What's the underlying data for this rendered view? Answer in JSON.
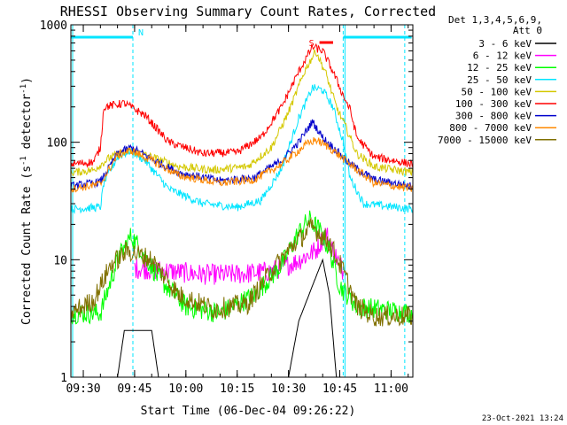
{
  "chart_data": {
    "type": "line",
    "title": "RHESSI Observing Summary Count Rates, Corrected",
    "xlabel": "Start Time (06-Dec-04 09:26:22)",
    "ylabel_main": "Corrected Count Rate (s",
    "ylabel_sup1": "-1",
    "ylabel_mid": " detector",
    "ylabel_sup2": "-1",
    "ylabel_end": ")",
    "ylog": true,
    "ylim": [
      1,
      1000
    ],
    "xlim": [
      "09:26:22",
      "11:06:22"
    ],
    "x_ticks": [
      "09:30",
      "09:45",
      "10:00",
      "10:15",
      "10:30",
      "10:45",
      "11:00"
    ],
    "y_ticks": [
      "1",
      "10",
      "100",
      "1000"
    ],
    "legend_header": [
      "Det 1,3,4,5,6,9,",
      "Att 0"
    ],
    "legend_position": "right",
    "footer": "23-Oct-2021 13:24",
    "flags": {
      "n_label": "N",
      "s_label": "S",
      "night_intervals": [
        [
          "09:26:22",
          "09:44:30"
        ],
        [
          "10:46:00",
          "11:06:00"
        ]
      ],
      "flare_interval": [
        "10:37:30",
        "10:41:30"
      ],
      "saa_lines": [
        "09:44:30",
        "10:46:00",
        "11:04:00"
      ]
    },
    "colors": {
      "n_flag": "#00e5ff",
      "s_flag": "#ff0000",
      "dashed_lines": "#00e5ff",
      "axes": "#000000"
    },
    "series": [
      {
        "name": "3 - 6 keV",
        "color": "#000000",
        "points": [
          [
            "09:26:22",
            1
          ],
          [
            "09:40:00",
            1
          ],
          [
            "09:42:00",
            2.5
          ],
          [
            "09:50:00",
            2.5
          ],
          [
            "09:52:00",
            1
          ],
          [
            "10:30:00",
            1
          ],
          [
            "10:33:00",
            3
          ],
          [
            "10:37:00",
            6
          ],
          [
            "10:40:00",
            10
          ],
          [
            "10:42:00",
            5
          ],
          [
            "10:44:00",
            1
          ],
          [
            "11:06:22",
            1
          ]
        ]
      },
      {
        "name": "6 - 12 keV",
        "color": "#ff00ff",
        "points": [
          [
            "09:45:00",
            8.5
          ],
          [
            "09:55:00",
            8
          ],
          [
            "10:05:00",
            7.5
          ],
          [
            "10:15:00",
            7.5
          ],
          [
            "10:25:00",
            8
          ],
          [
            "10:32:00",
            9.5
          ],
          [
            "10:38:00",
            12
          ],
          [
            "10:41:00",
            17
          ],
          [
            "10:43:00",
            12
          ],
          [
            "10:46:00",
            8
          ]
        ]
      },
      {
        "name": "12 - 25 keV",
        "color": "#00ff00",
        "points": [
          [
            "09:26:22",
            3.5
          ],
          [
            "09:35:00",
            3.5
          ],
          [
            "09:40:00",
            10
          ],
          [
            "09:44:00",
            16
          ],
          [
            "09:47:00",
            12
          ],
          [
            "09:52:00",
            7
          ],
          [
            "10:00:00",
            4
          ],
          [
            "10:10:00",
            3.5
          ],
          [
            "10:20:00",
            5
          ],
          [
            "10:28:00",
            9
          ],
          [
            "10:33:00",
            17
          ],
          [
            "10:36:00",
            22
          ],
          [
            "10:39:00",
            18
          ],
          [
            "10:42:00",
            12
          ],
          [
            "10:45:00",
            6
          ],
          [
            "10:50:00",
            4
          ],
          [
            "11:06:22",
            3.5
          ]
        ]
      },
      {
        "name": "25 - 50 keV",
        "color": "#00e5ff",
        "points": [
          [
            "09:26:22",
            27
          ],
          [
            "09:35:00",
            28
          ],
          [
            "09:36:00",
            45
          ],
          [
            "09:40:00",
            75
          ],
          [
            "09:44:00",
            85
          ],
          [
            "09:48:00",
            70
          ],
          [
            "09:55:00",
            40
          ],
          [
            "10:05:00",
            30
          ],
          [
            "10:15:00",
            28
          ],
          [
            "10:22:00",
            32
          ],
          [
            "10:28:00",
            60
          ],
          [
            "10:33:00",
            160
          ],
          [
            "10:37:00",
            290
          ],
          [
            "10:40:00",
            280
          ],
          [
            "10:43:00",
            200
          ],
          [
            "10:46:00",
            100
          ],
          [
            "10:48:00",
            50
          ],
          [
            "10:52:00",
            30
          ],
          [
            "11:06:22",
            27
          ]
        ]
      },
      {
        "name": "50 - 100 keV",
        "color": "#d4c800",
        "points": [
          [
            "09:26:22",
            55
          ],
          [
            "09:33:00",
            58
          ],
          [
            "09:38:00",
            75
          ],
          [
            "09:44:00",
            85
          ],
          [
            "09:50:00",
            75
          ],
          [
            "09:58:00",
            62
          ],
          [
            "10:08:00",
            58
          ],
          [
            "10:18:00",
            62
          ],
          [
            "10:25:00",
            90
          ],
          [
            "10:30:00",
            180
          ],
          [
            "10:35:00",
            420
          ],
          [
            "10:38:00",
            600
          ],
          [
            "10:41:00",
            380
          ],
          [
            "10:44:00",
            200
          ],
          [
            "10:47:00",
            130
          ],
          [
            "10:50:00",
            80
          ],
          [
            "10:55:00",
            62
          ],
          [
            "11:06:22",
            55
          ]
        ]
      },
      {
        "name": "100 - 300 keV",
        "color": "#ff0000",
        "points": [
          [
            "09:26:22",
            65
          ],
          [
            "09:33:00",
            68
          ],
          [
            "09:35:00",
            90
          ],
          [
            "09:36:00",
            200
          ],
          [
            "09:42:00",
            215
          ],
          [
            "09:48:00",
            170
          ],
          [
            "09:55:00",
            100
          ],
          [
            "10:05:00",
            80
          ],
          [
            "10:15:00",
            82
          ],
          [
            "10:22:00",
            110
          ],
          [
            "10:28:00",
            200
          ],
          [
            "10:33:00",
            400
          ],
          [
            "10:37:00",
            650
          ],
          [
            "10:40:00",
            600
          ],
          [
            "10:43:00",
            400
          ],
          [
            "10:46:00",
            250
          ],
          [
            "10:48:00",
            190
          ],
          [
            "10:50:00",
            110
          ],
          [
            "10:55:00",
            75
          ],
          [
            "11:06:22",
            65
          ]
        ]
      },
      {
        "name": "300 - 800 keV",
        "color": "#0000cc",
        "points": [
          [
            "09:26:22",
            42
          ],
          [
            "09:35:00",
            46
          ],
          [
            "09:40:00",
            80
          ],
          [
            "09:44:00",
            90
          ],
          [
            "09:50:00",
            72
          ],
          [
            "09:58:00",
            55
          ],
          [
            "10:10:00",
            47
          ],
          [
            "10:20:00",
            50
          ],
          [
            "10:28:00",
            70
          ],
          [
            "10:33:00",
            100
          ],
          [
            "10:37:00",
            150
          ],
          [
            "10:40:00",
            110
          ],
          [
            "10:44:00",
            85
          ],
          [
            "10:48:00",
            65
          ],
          [
            "10:55:00",
            48
          ],
          [
            "11:06:22",
            42
          ]
        ]
      },
      {
        "name": "800 - 7000 keV",
        "color": "#ff8800",
        "points": [
          [
            "09:26:22",
            40
          ],
          [
            "09:35:00",
            44
          ],
          [
            "09:40:00",
            78
          ],
          [
            "09:44:00",
            85
          ],
          [
            "09:50:00",
            70
          ],
          [
            "09:58:00",
            52
          ],
          [
            "10:10:00",
            45
          ],
          [
            "10:20:00",
            48
          ],
          [
            "10:28:00",
            65
          ],
          [
            "10:35:00",
            95
          ],
          [
            "10:38:00",
            105
          ],
          [
            "10:42:00",
            90
          ],
          [
            "10:48:00",
            65
          ],
          [
            "10:55:00",
            45
          ],
          [
            "11:06:22",
            40
          ]
        ]
      },
      {
        "name": "7000 - 15000 keV",
        "color": "#807000",
        "points": [
          [
            "09:26:22",
            3.5
          ],
          [
            "09:33:00",
            4.5
          ],
          [
            "09:38:00",
            9
          ],
          [
            "09:43:00",
            12
          ],
          [
            "09:50:00",
            10
          ],
          [
            "09:58:00",
            5
          ],
          [
            "10:08:00",
            3.8
          ],
          [
            "10:18:00",
            4.2
          ],
          [
            "10:25:00",
            8
          ],
          [
            "10:32:00",
            14
          ],
          [
            "10:37:00",
            19
          ],
          [
            "10:42:00",
            14
          ],
          [
            "10:46:00",
            8
          ],
          [
            "10:50:00",
            4
          ],
          [
            "10:55:00",
            3.3
          ],
          [
            "11:06:22",
            3.3
          ]
        ]
      }
    ]
  }
}
